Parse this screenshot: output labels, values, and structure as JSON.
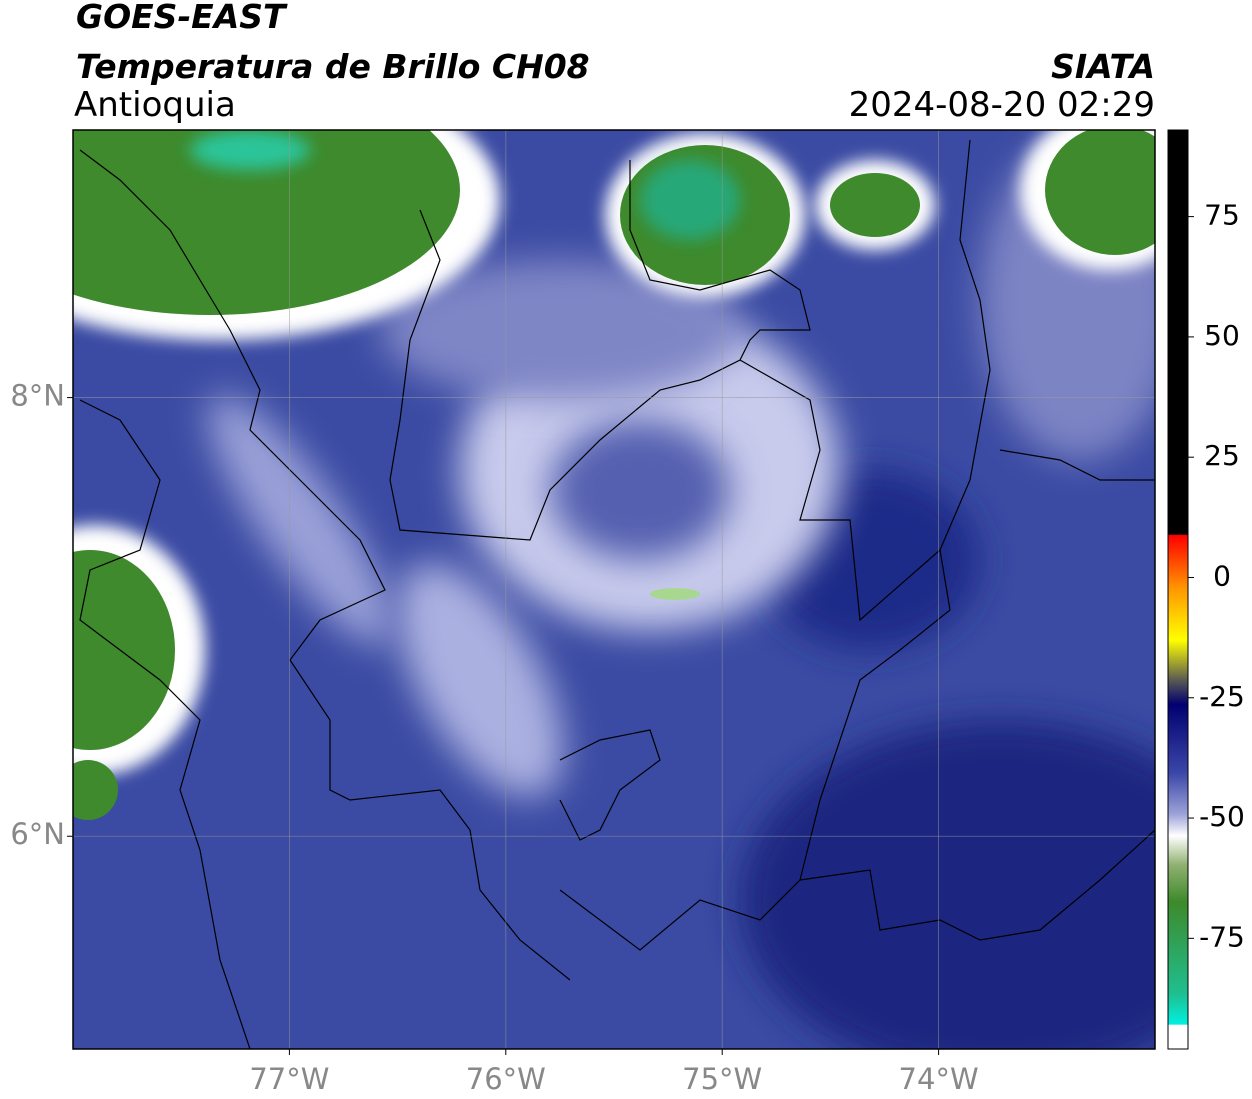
{
  "chart_data": {
    "type": "map",
    "title": "GOES-EAST",
    "subtitle": "Temperatura de Brillo CH08",
    "region": "Antioquia",
    "source": "SIATA",
    "timestamp": "2024-08-20 02:29",
    "xlim": [
      -78,
      -73
    ],
    "ylim": [
      5.03,
      9.22
    ],
    "xticks": [
      {
        "value": -77,
        "label": "77°W"
      },
      {
        "value": -76,
        "label": "76°W"
      },
      {
        "value": -75,
        "label": "75°W"
      },
      {
        "value": -74,
        "label": "74°W"
      }
    ],
    "yticks": [
      {
        "value": 8,
        "label": "8°N"
      },
      {
        "value": 6,
        "label": "6°N"
      }
    ],
    "grid": true,
    "colorbar": {
      "lim": [
        -98,
        93
      ],
      "ticks": [
        75,
        50,
        25,
        0,
        -25,
        -50,
        -75
      ]
    }
  }
}
